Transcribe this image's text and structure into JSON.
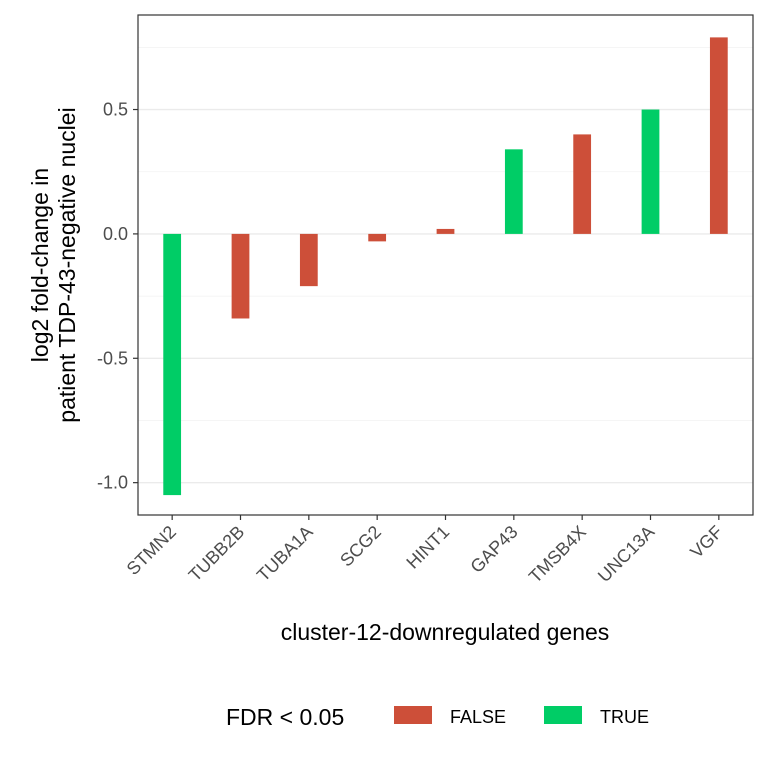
{
  "chart_data": {
    "type": "bar",
    "categories": [
      "STMN2",
      "TUBB2B",
      "TUBA1A",
      "SCG2",
      "HINT1",
      "GAP43",
      "TMSB4X",
      "UNC13A",
      "VGF"
    ],
    "values": [
      -1.05,
      -0.34,
      -0.21,
      -0.03,
      0.02,
      0.34,
      0.4,
      0.5,
      0.79
    ],
    "fdr_significant": [
      "TRUE",
      "FALSE",
      "FALSE",
      "FALSE",
      "FALSE",
      "TRUE",
      "FALSE",
      "TRUE",
      "FALSE"
    ],
    "xlabel": "cluster-12-downregulated genes",
    "ylabel_line1": "log2 fold-change in",
    "ylabel_line2": "patient TDP-43-negative nuclei",
    "ylim": [
      -1.13,
      0.88
    ],
    "yticks": [
      -1.0,
      -0.5,
      0.0,
      0.5
    ],
    "ytick_labels": [
      "-1.0",
      "-0.5",
      "0.0",
      "0.5"
    ],
    "grid": true,
    "legend": {
      "title": "FDR < 0.05",
      "placement": "bottom",
      "entries": [
        {
          "label": "FALSE",
          "color": "#cd4f39"
        },
        {
          "label": "TRUE",
          "color": "#00cd66"
        }
      ]
    }
  }
}
